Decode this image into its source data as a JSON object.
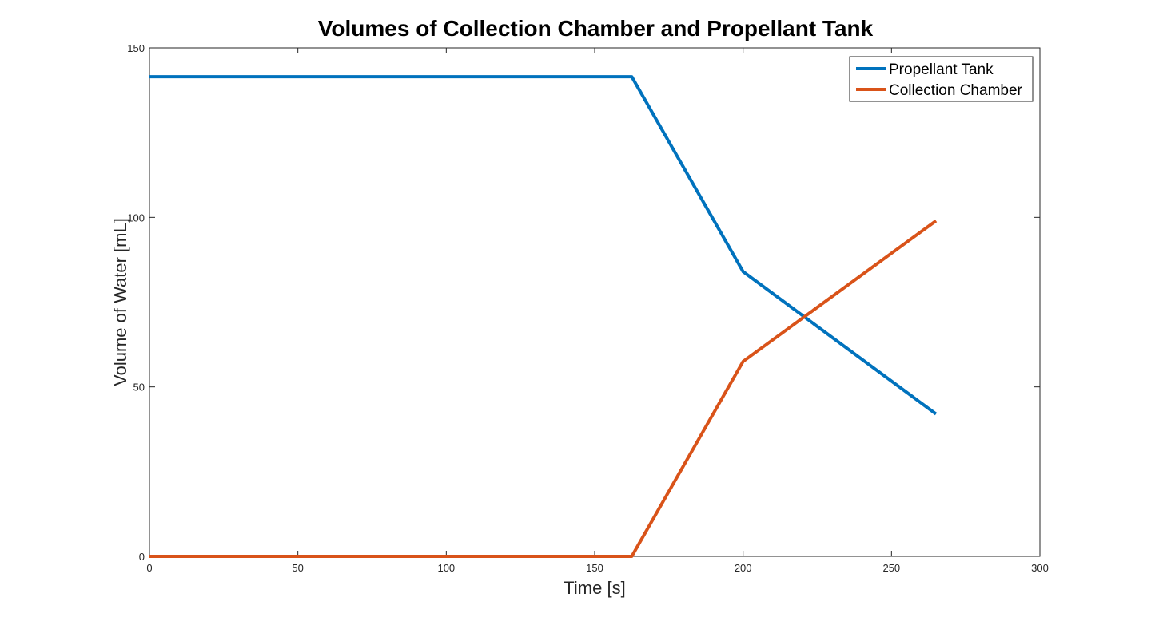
{
  "chart_data": {
    "type": "line",
    "title": "Volumes of Collection Chamber and Propellant Tank",
    "xlabel": "Time [s]",
    "ylabel": "Volume of Water [mL]",
    "xlim": [
      0,
      300
    ],
    "ylim": [
      0,
      150
    ],
    "xticks": [
      0,
      50,
      100,
      150,
      200,
      250,
      300
    ],
    "yticks": [
      0,
      50,
      100,
      150
    ],
    "grid": false,
    "legend_position": "top-right",
    "series": [
      {
        "name": "Propellant Tank",
        "color": "#0072BD",
        "x": [
          0,
          162.5,
          200,
          265
        ],
        "y": [
          141.5,
          141.5,
          84,
          42
        ]
      },
      {
        "name": "Collection Chamber",
        "color": "#D95319",
        "x": [
          0,
          162.5,
          200,
          265
        ],
        "y": [
          0,
          0,
          57.5,
          99
        ]
      }
    ]
  }
}
